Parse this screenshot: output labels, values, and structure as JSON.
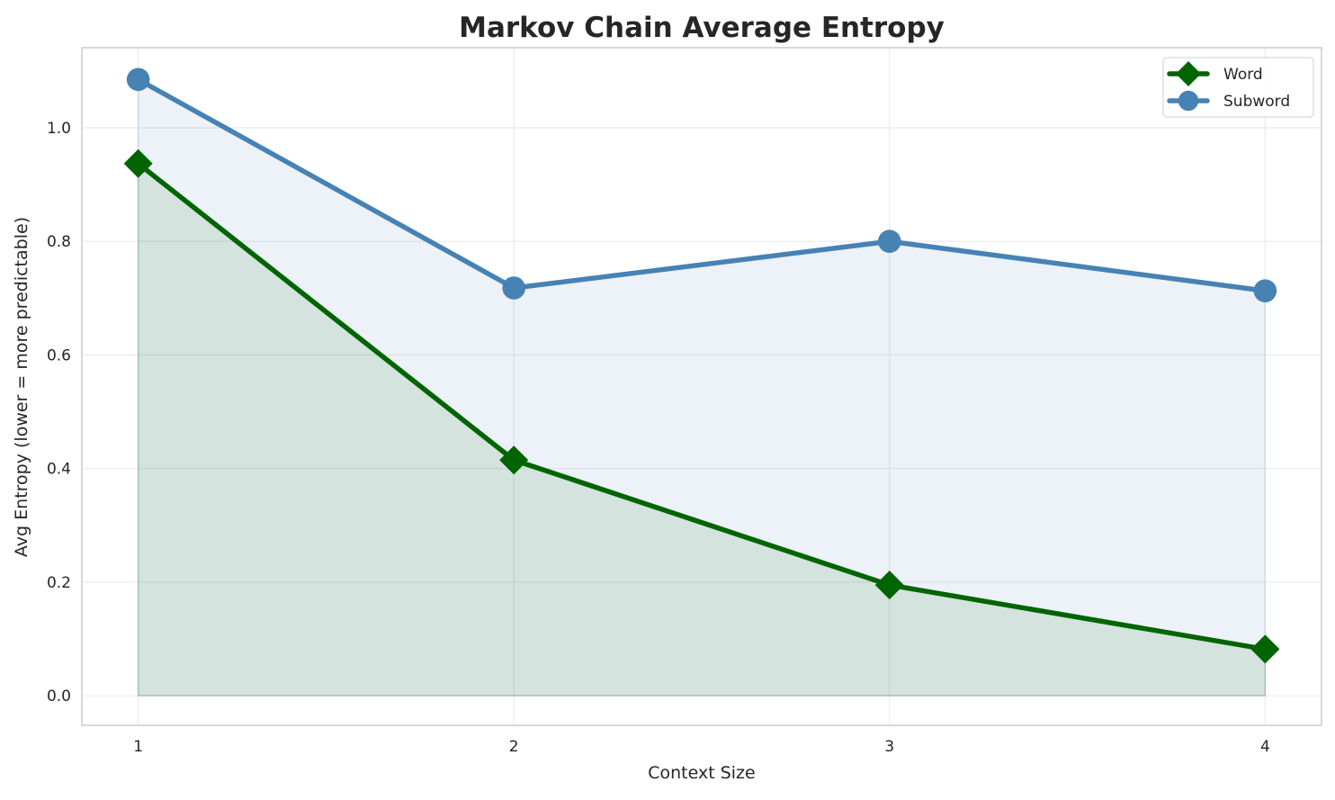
{
  "chart_data": {
    "type": "line",
    "title": "Markov Chain Average Entropy",
    "xlabel": "Context Size",
    "ylabel": "Avg Entropy (lower = more predictable)",
    "x": [
      1,
      2,
      3,
      4
    ],
    "x_ticks": [
      "1",
      "2",
      "3",
      "4"
    ],
    "y_ticks": [
      "0.0",
      "0.2",
      "0.4",
      "0.6",
      "0.8",
      "1.0"
    ],
    "xlim": [
      0.85,
      4.15
    ],
    "ylim": [
      -0.052,
      1.141
    ],
    "grid": true,
    "legend_position": "top-right",
    "series": [
      {
        "name": "Word",
        "values": [
          0.937,
          0.415,
          0.195,
          0.082
        ],
        "color": "#006400",
        "marker": "diamond",
        "filled_area": true
      },
      {
        "name": "Subword",
        "values": [
          1.085,
          0.718,
          0.8,
          0.713
        ],
        "color": "#4682b4",
        "marker": "circle",
        "filled_area": true
      }
    ]
  }
}
